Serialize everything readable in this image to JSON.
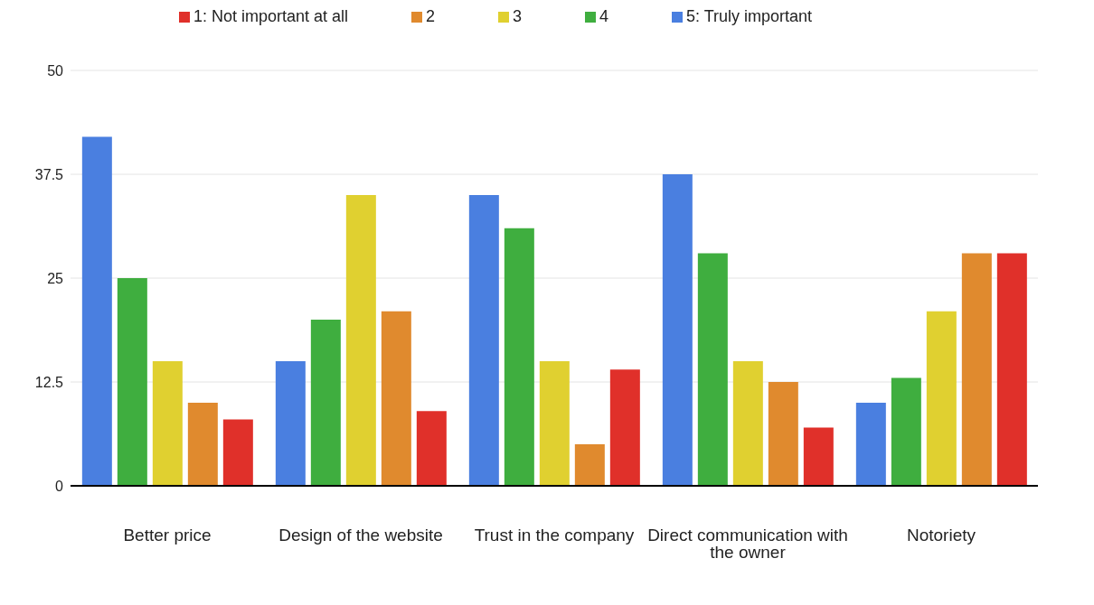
{
  "chart_data": {
    "type": "bar",
    "categories": [
      "Better price",
      "Design of the website",
      "Trust in the company",
      "Direct communication with the owner",
      "Notoriety"
    ],
    "series": [
      {
        "name": "5: Truly important",
        "color": "#4a7fe0",
        "values": [
          42,
          15,
          35,
          37.5,
          10
        ]
      },
      {
        "name": "4",
        "color": "#3fae3f",
        "values": [
          25,
          20,
          31,
          28,
          13
        ]
      },
      {
        "name": "3",
        "color": "#e0d030",
        "values": [
          15,
          35,
          15,
          15,
          21
        ]
      },
      {
        "name": "2",
        "color": "#e08a2e",
        "values": [
          10,
          21,
          5,
          12.5,
          28
        ]
      },
      {
        "name": "1: Not important at all",
        "color": "#e0302a",
        "values": [
          8,
          9,
          14,
          7,
          28
        ]
      }
    ],
    "ylim": [
      0,
      50
    ],
    "yticks": [
      0,
      12.5,
      25,
      37.5,
      50
    ],
    "grid": "y",
    "legend": "top"
  }
}
